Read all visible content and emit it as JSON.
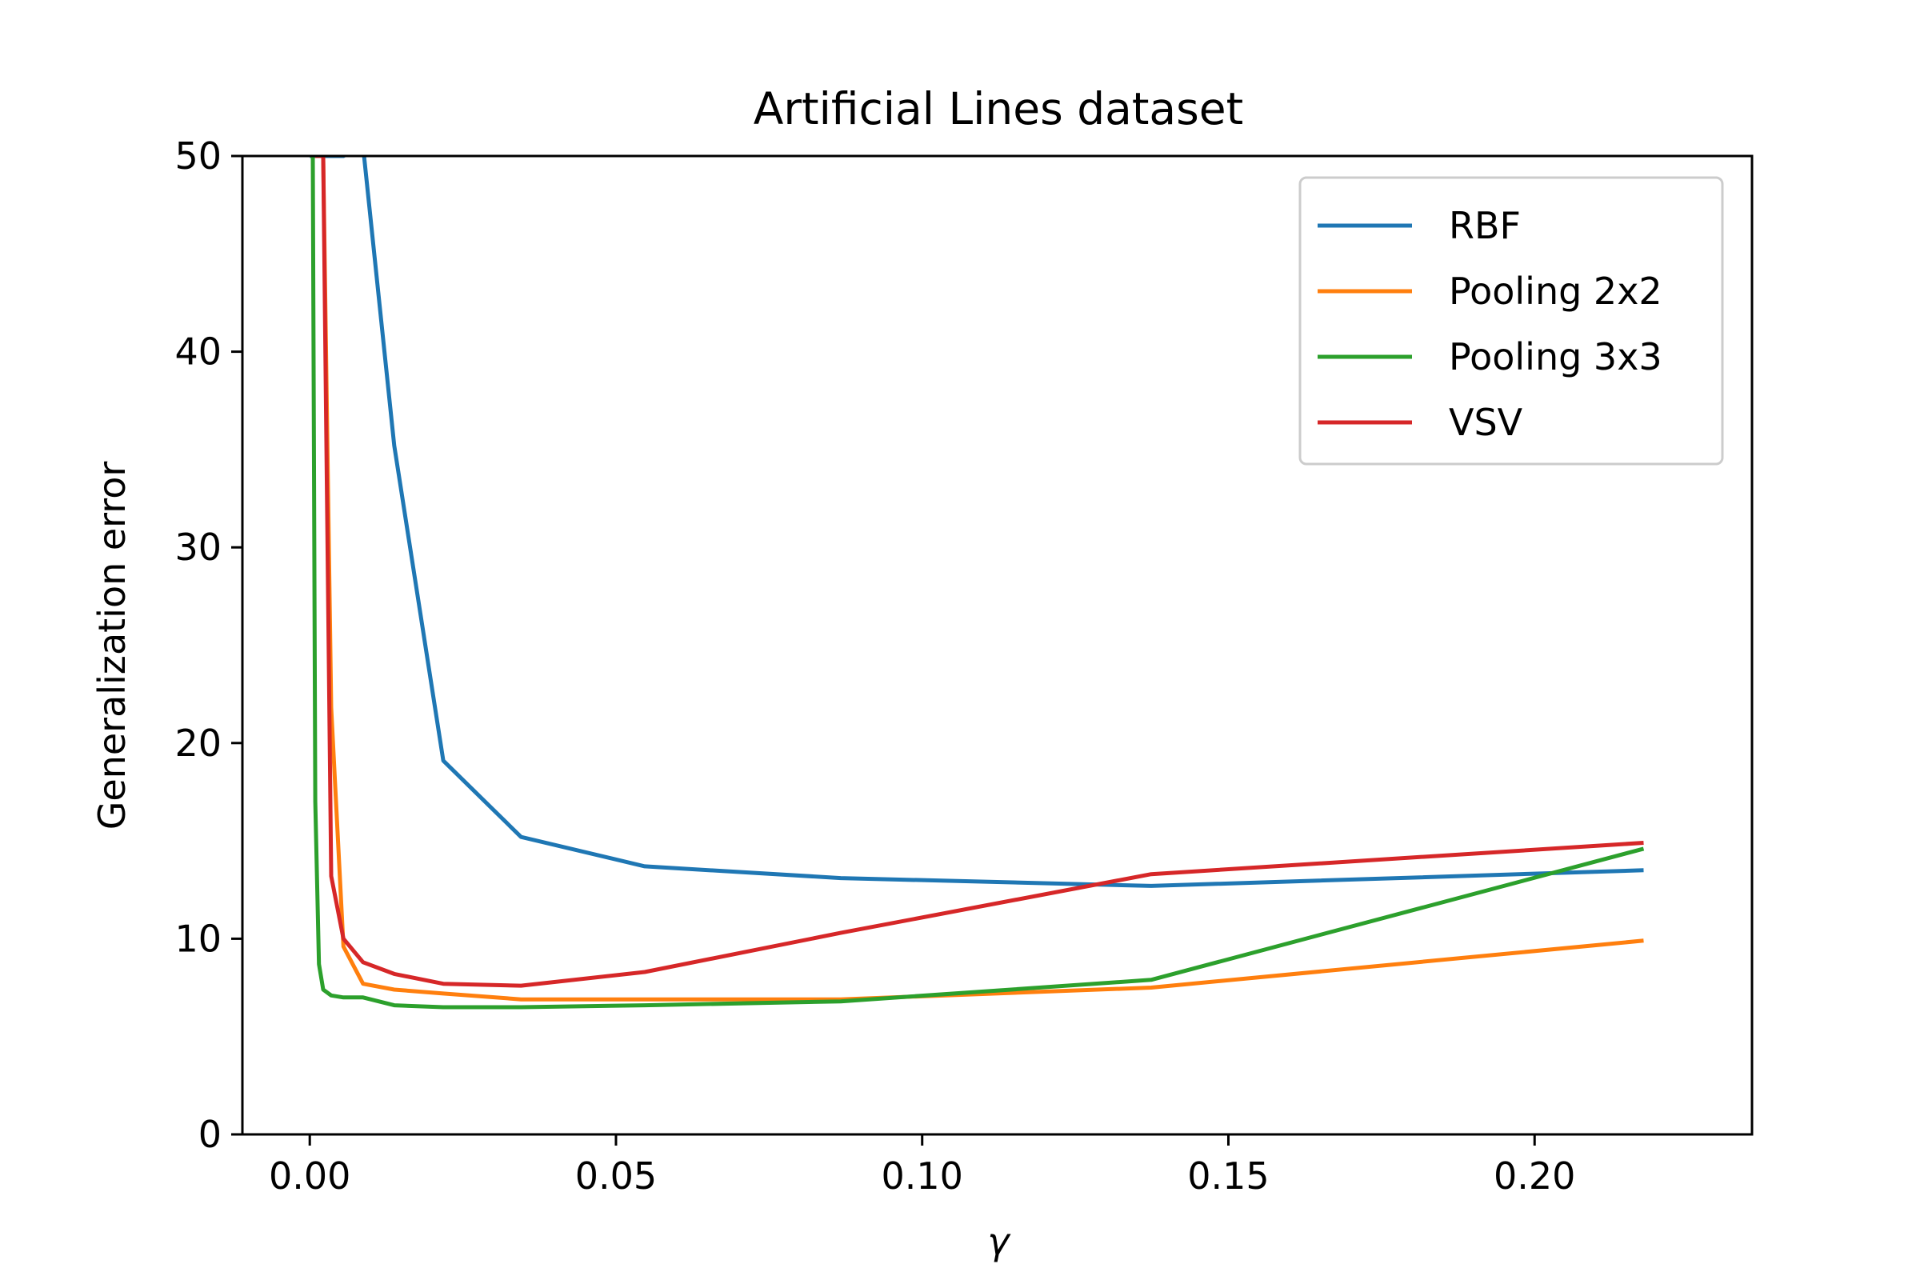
{
  "chart_data": {
    "type": "line",
    "title": "Artificial Lines dataset",
    "xlabel": "γ",
    "ylabel": "Generalization error",
    "xlim": [
      -0.011,
      0.2355
    ],
    "ylim": [
      0,
      50
    ],
    "xticks": [
      0.0,
      0.05,
      0.1,
      0.15,
      0.2
    ],
    "xtick_labels": [
      "0.00",
      "0.05",
      "0.10",
      "0.15",
      "0.20"
    ],
    "yticks": [
      0,
      10,
      20,
      30,
      40,
      50
    ],
    "ytick_labels": [
      "0",
      "10",
      "20",
      "30",
      "40",
      "50"
    ],
    "grid": false,
    "legend_position": "top-right",
    "series": [
      {
        "name": "RBF",
        "color": "#1f77b4",
        "x": [
          0.0,
          0.001,
          0.002,
          0.0035,
          0.0055,
          0.0087,
          0.0138,
          0.0218,
          0.0345,
          0.0547,
          0.0867,
          0.1374,
          0.2178
        ],
        "y": [
          50,
          50,
          50,
          50,
          50,
          50.5,
          35.2,
          19.1,
          15.2,
          13.7,
          13.1,
          12.7,
          13.5
        ]
      },
      {
        "name": "Pooling 2x2",
        "color": "#ff7f0e",
        "x": [
          0.0009,
          0.0015,
          0.0022,
          0.0035,
          0.0055,
          0.0087,
          0.0138,
          0.0218,
          0.0345,
          0.0547,
          0.0867,
          0.1374,
          0.2178
        ],
        "y": [
          50,
          50,
          50,
          21.8,
          9.6,
          7.7,
          7.4,
          7.2,
          6.9,
          6.9,
          6.9,
          7.5,
          9.9
        ]
      },
      {
        "name": "Pooling 3x3",
        "color": "#2ca02c",
        "x": [
          0.0001,
          0.0005,
          0.0009,
          0.0015,
          0.0022,
          0.0035,
          0.0055,
          0.0087,
          0.0138,
          0.0218,
          0.0345,
          0.0547,
          0.0867,
          0.1374,
          0.2178
        ],
        "y": [
          50,
          50,
          17.0,
          8.7,
          7.4,
          7.1,
          7.0,
          7.0,
          6.6,
          6.5,
          6.5,
          6.6,
          6.8,
          7.9,
          14.6
        ]
      },
      {
        "name": "VSV",
        "color": "#d62728",
        "x": [
          0.0009,
          0.0015,
          0.0022,
          0.0035,
          0.0055,
          0.0087,
          0.0138,
          0.0218,
          0.0345,
          0.0547,
          0.0867,
          0.1374,
          0.2178
        ],
        "y": [
          50,
          50,
          50,
          13.2,
          10.0,
          8.8,
          8.2,
          7.7,
          7.6,
          8.3,
          10.3,
          13.3,
          14.9
        ]
      }
    ]
  }
}
